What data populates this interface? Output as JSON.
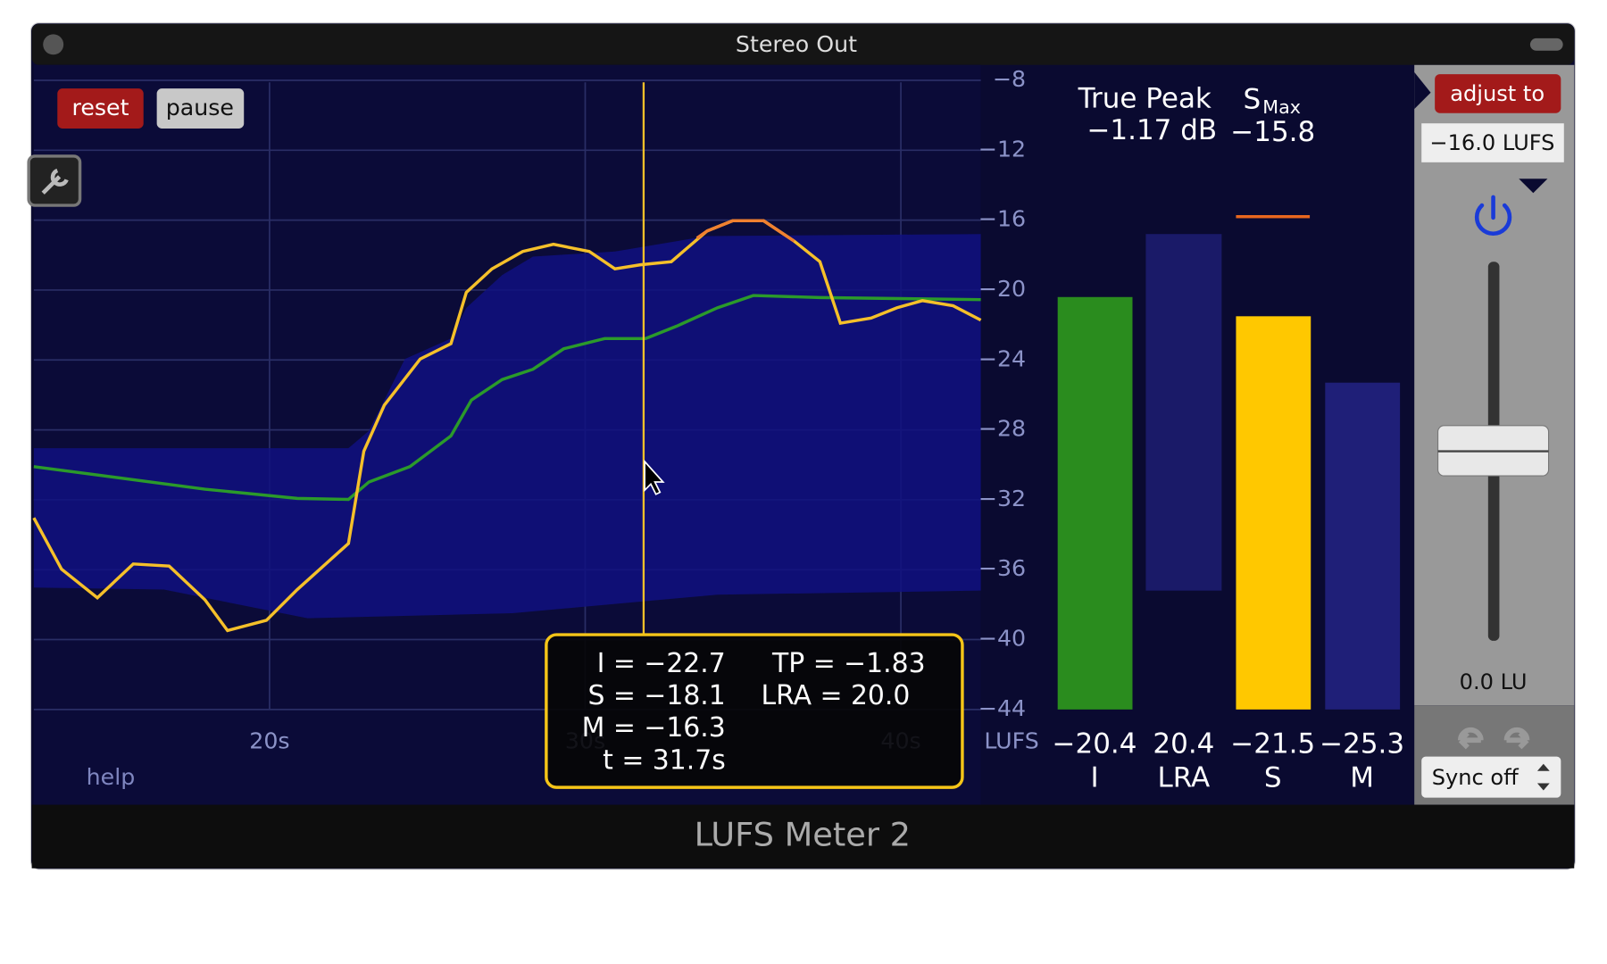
{
  "window": {
    "title": "Stereo Out",
    "footer": "LUFS Meter 2"
  },
  "controls": {
    "reset": "reset",
    "pause": "pause",
    "help": "help",
    "adjust": "adjust to",
    "target": "−16.0 LUFS",
    "gain": "0.0 LU",
    "sync": "Sync off"
  },
  "graph": {
    "ylim": [
      -8,
      -44
    ],
    "yticks": [
      {
        "value": -8,
        "label": "−8"
      },
      {
        "value": -12,
        "label": "−12"
      },
      {
        "value": -16,
        "label": "−16"
      },
      {
        "value": -20,
        "label": "−20"
      },
      {
        "value": -24,
        "label": "−24"
      },
      {
        "value": -28,
        "label": "−28"
      },
      {
        "value": -32,
        "label": "−32"
      },
      {
        "value": -36,
        "label": "−36"
      },
      {
        "value": -40,
        "label": "−40"
      },
      {
        "value": -44,
        "label": "−44"
      }
    ],
    "unit": "LUFS",
    "xticks": [
      {
        "value": 20,
        "label": "20s"
      },
      {
        "value": 30,
        "label": "30s"
      },
      {
        "value": 40,
        "label": "40s"
      }
    ]
  },
  "tooltip": {
    "left": [
      "I = −22.7",
      "S = −18.1",
      "M = −16.3",
      "t = 31.7s"
    ],
    "right": [
      "TP = −1.83",
      "LRA = 20.0"
    ]
  },
  "peak": {
    "true_peak_label": "True Peak",
    "true_peak": "−1.17 dB",
    "smax_label": "S",
    "smax_sub": "Max",
    "smax": -15.8,
    "smax_label_value": "−15.8",
    "smax_color": "#e8671e"
  },
  "meters": [
    {
      "name": "I",
      "value": -20.4,
      "value_label": "−20.4",
      "color": "#2a8c1e"
    },
    {
      "name": "LRA",
      "value": 20.4,
      "value_label": "20.4"
    },
    {
      "name": "S",
      "value": -21.5,
      "value_label": "−21.5",
      "color": "#ffc800"
    },
    {
      "name": "M",
      "value": -25.3,
      "value_label": "−25.3",
      "color": "#1f1f78"
    }
  ]
}
